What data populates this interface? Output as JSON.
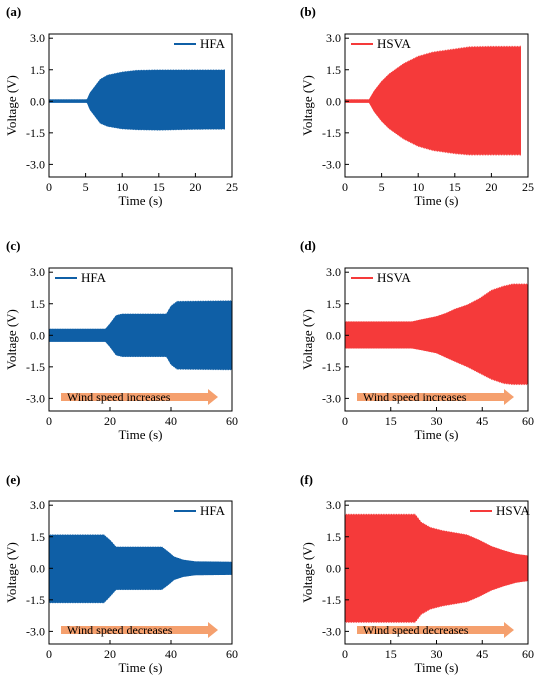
{
  "figure": {
    "colors": {
      "hfa": "#0f5fa6",
      "hsva": "#f53a3a",
      "arrow": "#f5a06e"
    }
  },
  "chart_data": [
    {
      "label": "(a)",
      "type": "area",
      "series_name": "HFA",
      "color": "#0f5fa6",
      "xlabel": "Time (s)",
      "ylabel": "Voltage (V)",
      "xlim": [
        0,
        25
      ],
      "ylim": [
        -3.6,
        3.2
      ],
      "xticks": [
        0,
        5,
        10,
        15,
        20,
        25
      ],
      "yticks": [
        3.0,
        1.5,
        0.0,
        -1.5,
        -3.0
      ],
      "envelope": {
        "x": [
          0,
          5.2,
          5.6,
          7,
          8,
          10,
          12,
          15,
          20,
          24
        ],
        "upper": [
          0.08,
          0.08,
          0.4,
          1.05,
          1.25,
          1.4,
          1.48,
          1.5,
          1.5,
          1.5
        ],
        "lower": [
          -0.06,
          -0.06,
          -0.4,
          -1.05,
          -1.2,
          -1.32,
          -1.36,
          -1.38,
          -1.34,
          -1.33
        ]
      },
      "legend_position": "top-right",
      "annotation": ""
    },
    {
      "label": "(b)",
      "type": "area",
      "series_name": "HSVA",
      "color": "#f53a3a",
      "xlabel": "Time (s)",
      "ylabel": "Voltage (V)",
      "xlim": [
        0,
        25
      ],
      "ylim": [
        -3.6,
        3.2
      ],
      "xticks": [
        0,
        5,
        10,
        15,
        20,
        25
      ],
      "yticks": [
        3.0,
        1.5,
        0.0,
        -1.5,
        -3.0
      ],
      "envelope": {
        "x": [
          0,
          3.3,
          4,
          5,
          6,
          8,
          10,
          12,
          15,
          17,
          20,
          24
        ],
        "upper": [
          0.08,
          0.08,
          0.5,
          0.95,
          1.3,
          1.8,
          2.15,
          2.35,
          2.5,
          2.6,
          2.62,
          2.62
        ],
        "lower": [
          -0.06,
          -0.06,
          -0.5,
          -0.95,
          -1.3,
          -1.8,
          -2.15,
          -2.35,
          -2.5,
          -2.56,
          -2.56,
          -2.56
        ]
      },
      "legend_position": "top-left",
      "annotation": ""
    },
    {
      "label": "(c)",
      "type": "area",
      "series_name": "HFA",
      "color": "#0f5fa6",
      "xlabel": "Time (s)",
      "ylabel": "Voltage (V)",
      "xlim": [
        0,
        60
      ],
      "ylim": [
        -3.6,
        3.2
      ],
      "xticks": [
        0,
        20,
        40,
        60
      ],
      "yticks": [
        3.0,
        1.5,
        0.0,
        -1.5,
        -3.0
      ],
      "envelope": {
        "x": [
          0,
          18.5,
          20,
          22,
          24,
          38.5,
          40,
          42,
          60
        ],
        "upper": [
          0.3,
          0.3,
          0.55,
          0.95,
          1.02,
          1.02,
          1.4,
          1.62,
          1.65
        ],
        "lower": [
          -0.3,
          -0.3,
          -0.55,
          -0.95,
          -1.02,
          -1.02,
          -1.4,
          -1.62,
          -1.65
        ]
      },
      "legend_position": "top-left",
      "annotation": "Wind speed increases"
    },
    {
      "label": "(d)",
      "type": "area",
      "series_name": "HSVA",
      "color": "#f53a3a",
      "xlabel": "Time (s)",
      "ylabel": "Voltage (V)",
      "xlim": [
        0,
        60
      ],
      "ylim": [
        -3.6,
        3.2
      ],
      "xticks": [
        0,
        15,
        30,
        45,
        60
      ],
      "yticks": [
        3.0,
        1.5,
        0.0,
        -1.5,
        -3.0
      ],
      "envelope": {
        "x": [
          0,
          22,
          25,
          30,
          33,
          36,
          40,
          44,
          48,
          52,
          55,
          60
        ],
        "upper": [
          0.65,
          0.65,
          0.75,
          0.9,
          1.05,
          1.25,
          1.45,
          1.75,
          2.15,
          2.35,
          2.45,
          2.45
        ],
        "lower": [
          -0.62,
          -0.62,
          -0.7,
          -0.85,
          -1.05,
          -1.25,
          -1.5,
          -1.8,
          -2.1,
          -2.3,
          -2.35,
          -2.35
        ]
      },
      "legend_position": "top-left",
      "annotation": "Wind speed increases"
    },
    {
      "label": "(e)",
      "type": "area",
      "series_name": "HFA",
      "color": "#0f5fa6",
      "xlabel": "Time (s)",
      "ylabel": "Voltage (V)",
      "xlim": [
        0,
        60
      ],
      "ylim": [
        -3.6,
        3.2
      ],
      "xticks": [
        0,
        20,
        40,
        60
      ],
      "yticks": [
        3.0,
        1.5,
        0.0,
        -1.5,
        -3.0
      ],
      "envelope": {
        "x": [
          0,
          18,
          20,
          22,
          37,
          39,
          41,
          44,
          48,
          60
        ],
        "upper": [
          1.6,
          1.6,
          1.35,
          1.02,
          1.02,
          0.8,
          0.55,
          0.4,
          0.32,
          0.3
        ],
        "lower": [
          -1.65,
          -1.65,
          -1.35,
          -1.02,
          -1.02,
          -0.8,
          -0.55,
          -0.4,
          -0.32,
          -0.3
        ]
      },
      "legend_position": "top-right",
      "annotation": "Wind speed decreases"
    },
    {
      "label": "(f)",
      "type": "area",
      "series_name": "HSVA",
      "color": "#f53a3a",
      "xlabel": "Time (s)",
      "ylabel": "Voltage (V)",
      "xlim": [
        0,
        60
      ],
      "ylim": [
        -3.6,
        3.2
      ],
      "xticks": [
        0,
        15,
        30,
        45,
        60
      ],
      "yticks": [
        3.0,
        1.5,
        0.0,
        -1.5,
        -3.0
      ],
      "envelope": {
        "x": [
          0,
          23,
          25,
          28,
          32,
          36,
          40,
          44,
          48,
          52,
          56,
          60
        ],
        "upper": [
          2.58,
          2.58,
          2.2,
          1.95,
          1.8,
          1.7,
          1.6,
          1.35,
          1.05,
          0.85,
          0.68,
          0.6
        ],
        "lower": [
          -2.58,
          -2.58,
          -2.2,
          -1.95,
          -1.8,
          -1.7,
          -1.6,
          -1.35,
          -1.05,
          -0.85,
          -0.68,
          -0.6
        ]
      },
      "legend_position": "top-right",
      "annotation": "Wind speed decreases"
    }
  ]
}
